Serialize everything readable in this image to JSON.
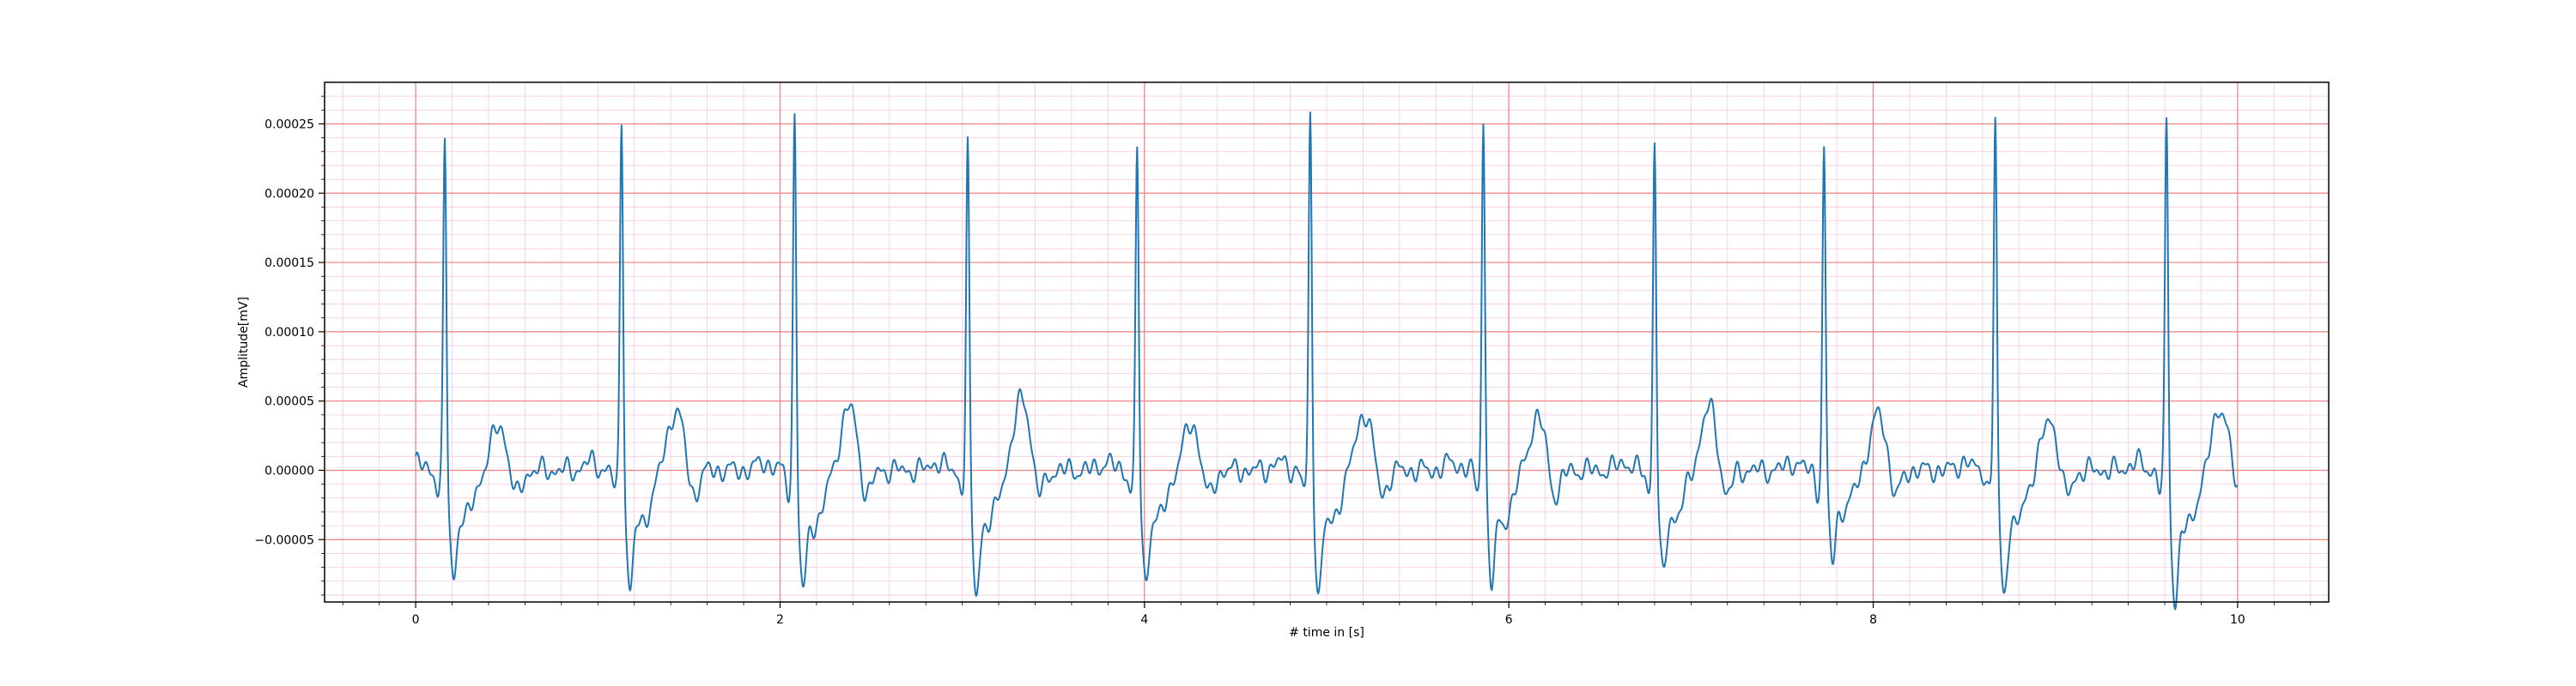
{
  "chart_data": {
    "type": "line",
    "title": "",
    "xlabel": "# time in [s]",
    "ylabel": "Amplitude[mV]",
    "xlim": [
      -0.5,
      10.5
    ],
    "ylim": [
      -9.5e-05,
      0.00028
    ],
    "x_ticks": [
      0,
      2,
      4,
      6,
      8,
      10
    ],
    "x_tick_labels": [
      "0",
      "2",
      "4",
      "6",
      "8",
      "10"
    ],
    "y_ticks": [
      -5e-05,
      0.0,
      5e-05,
      0.0001,
      0.00015,
      0.0002,
      0.00025
    ],
    "y_tick_labels": [
      "−0.00005",
      "0.00000",
      "0.00005",
      "0.00010",
      "0.00015",
      "0.00020",
      "0.00025"
    ],
    "grid": true,
    "colors": {
      "line": "#1f77b4",
      "major_grid": "#f07f7f",
      "minor_grid": "#f7c8de",
      "axes": "#000000"
    },
    "beats": [
      {
        "r_time": 0.16,
        "r_peak": 0.000243,
        "s_min": -6.3e-05,
        "t_amp": 3.2e-05
      },
      {
        "r_time": 1.13,
        "r_peak": 0.000263,
        "s_min": -7e-05,
        "t_amp": 4.4e-05
      },
      {
        "r_time": 2.08,
        "r_peak": 0.000262,
        "s_min": -7.2e-05,
        "t_amp": 4.6e-05
      },
      {
        "r_time": 3.03,
        "r_peak": 0.00024,
        "s_min": -7.2e-05,
        "t_amp": 5.2e-05
      },
      {
        "r_time": 3.96,
        "r_peak": 0.000235,
        "s_min": -6.5e-05,
        "t_amp": 3.3e-05
      },
      {
        "r_time": 4.91,
        "r_peak": 0.00026,
        "s_min": -7e-05,
        "t_amp": 4.2e-05
      },
      {
        "r_time": 5.86,
        "r_peak": 0.000261,
        "s_min": -6.7e-05,
        "t_amp": 3.8e-05
      },
      {
        "r_time": 6.8,
        "r_peak": 0.000244,
        "s_min": -6.2e-05,
        "t_amp": 4.5e-05
      },
      {
        "r_time": 7.73,
        "r_peak": 0.000236,
        "s_min": -5.2e-05,
        "t_amp": 4e-05
      },
      {
        "r_time": 8.67,
        "r_peak": 0.000259,
        "s_min": -7.2e-05,
        "t_amp": 3.6e-05
      },
      {
        "r_time": 9.61,
        "r_peak": 0.000259,
        "s_min": -7.7e-05,
        "t_amp": 4.6e-05
      }
    ],
    "series": [
      {
        "x_start": 0.0,
        "x_end": 10.0
      }
    ]
  }
}
